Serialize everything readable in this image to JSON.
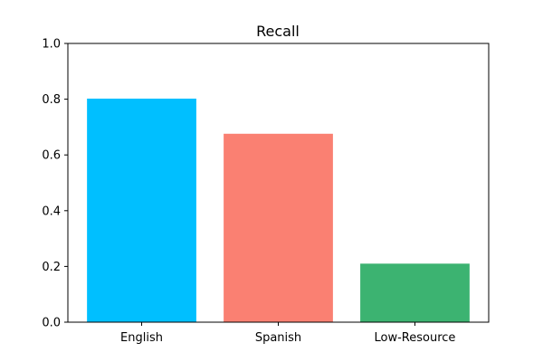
{
  "chart_data": {
    "type": "bar",
    "title": "Recall",
    "categories": [
      "English",
      "Spanish",
      "Low-Resource"
    ],
    "values": [
      0.802,
      0.676,
      0.21
    ],
    "colors": [
      "#00bfff",
      "#fa8072",
      "#3cb371"
    ],
    "xlabel": "",
    "ylabel": "",
    "ylim": [
      0,
      1.0
    ],
    "yticks": [
      0.0,
      0.2,
      0.4,
      0.6,
      0.8,
      1.0
    ],
    "ytick_labels": [
      "0.0",
      "0.2",
      "0.4",
      "0.6",
      "0.8",
      "1.0"
    ],
    "grid": false,
    "legend": "none"
  }
}
